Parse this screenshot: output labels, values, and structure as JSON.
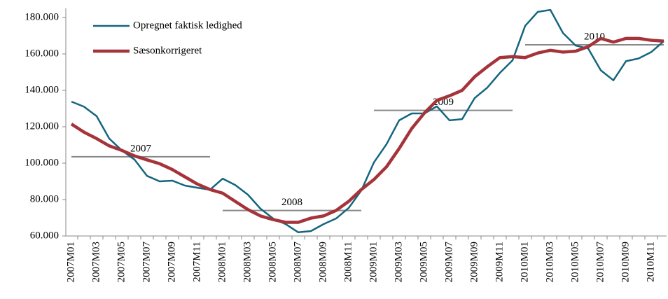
{
  "chart_data": {
    "type": "line",
    "categories": [
      "2007M01",
      null,
      "2007M03",
      null,
      "2007M05",
      null,
      "2007M07",
      null,
      "2007M09",
      null,
      "2007M11",
      null,
      "2008M01",
      null,
      "2008M03",
      null,
      "2008M05",
      null,
      "2008M07",
      null,
      "2008M09",
      null,
      "2008M11",
      null,
      "2009M01",
      null,
      "2009M03",
      null,
      "2009M05",
      null,
      "2009M07",
      null,
      "2009M09",
      null,
      "2009M11",
      null,
      "2010M01",
      null,
      "2010M03",
      null,
      "2010M05",
      null,
      "2010M07",
      null,
      "2010M09",
      null,
      "2010M11",
      null
    ],
    "series": [
      {
        "name": "Opregnet faktisk ledighed",
        "color": "#14667e",
        "values": [
          133800,
          131000,
          125800,
          113500,
          107000,
          102000,
          93000,
          90000,
          90400,
          87700,
          86500,
          85400,
          91500,
          88000,
          82700,
          75000,
          69600,
          66500,
          62000,
          62700,
          66500,
          69600,
          75400,
          85000,
          100400,
          110400,
          123500,
          127300,
          127300,
          131200,
          123500,
          124200,
          135800,
          141500,
          149600,
          156500,
          175400,
          183100,
          184200,
          171500,
          164600,
          163000,
          151000,
          145500,
          156000,
          157500,
          161000,
          167000
        ]
      },
      {
        "name": "Sæsonkorrigeret",
        "color": "#a5333a",
        "values": [
          121500,
          117000,
          113500,
          109500,
          107000,
          104000,
          101800,
          99700,
          96500,
          92500,
          88500,
          85500,
          83500,
          79000,
          74500,
          71000,
          69000,
          67500,
          67500,
          69800,
          71000,
          74000,
          79000,
          85500,
          91000,
          98000,
          108000,
          119000,
          127500,
          134500,
          137000,
          140000,
          147500,
          153000,
          158000,
          158500,
          158000,
          160500,
          162000,
          161000,
          161500,
          164000,
          168500,
          166500,
          168500,
          168500,
          167500,
          167000
        ]
      }
    ],
    "annual_averages": [
      {
        "label": "2007",
        "value": 103500
      },
      {
        "label": "2008",
        "value": 74000
      },
      {
        "label": "2009",
        "value": 129000
      },
      {
        "label": "2010",
        "value": 165000
      }
    ],
    "ylim": [
      60000,
      185000
    ],
    "yticks": [
      {
        "value": 60000,
        "label": "60.000"
      },
      {
        "value": 80000,
        "label": "80.000"
      },
      {
        "value": 100000,
        "label": "100.000"
      },
      {
        "value": 120000,
        "label": "120.000"
      },
      {
        "value": 140000,
        "label": "140.000"
      },
      {
        "value": 160000,
        "label": "160.000"
      },
      {
        "value": 180000,
        "label": "180.000"
      }
    ]
  }
}
